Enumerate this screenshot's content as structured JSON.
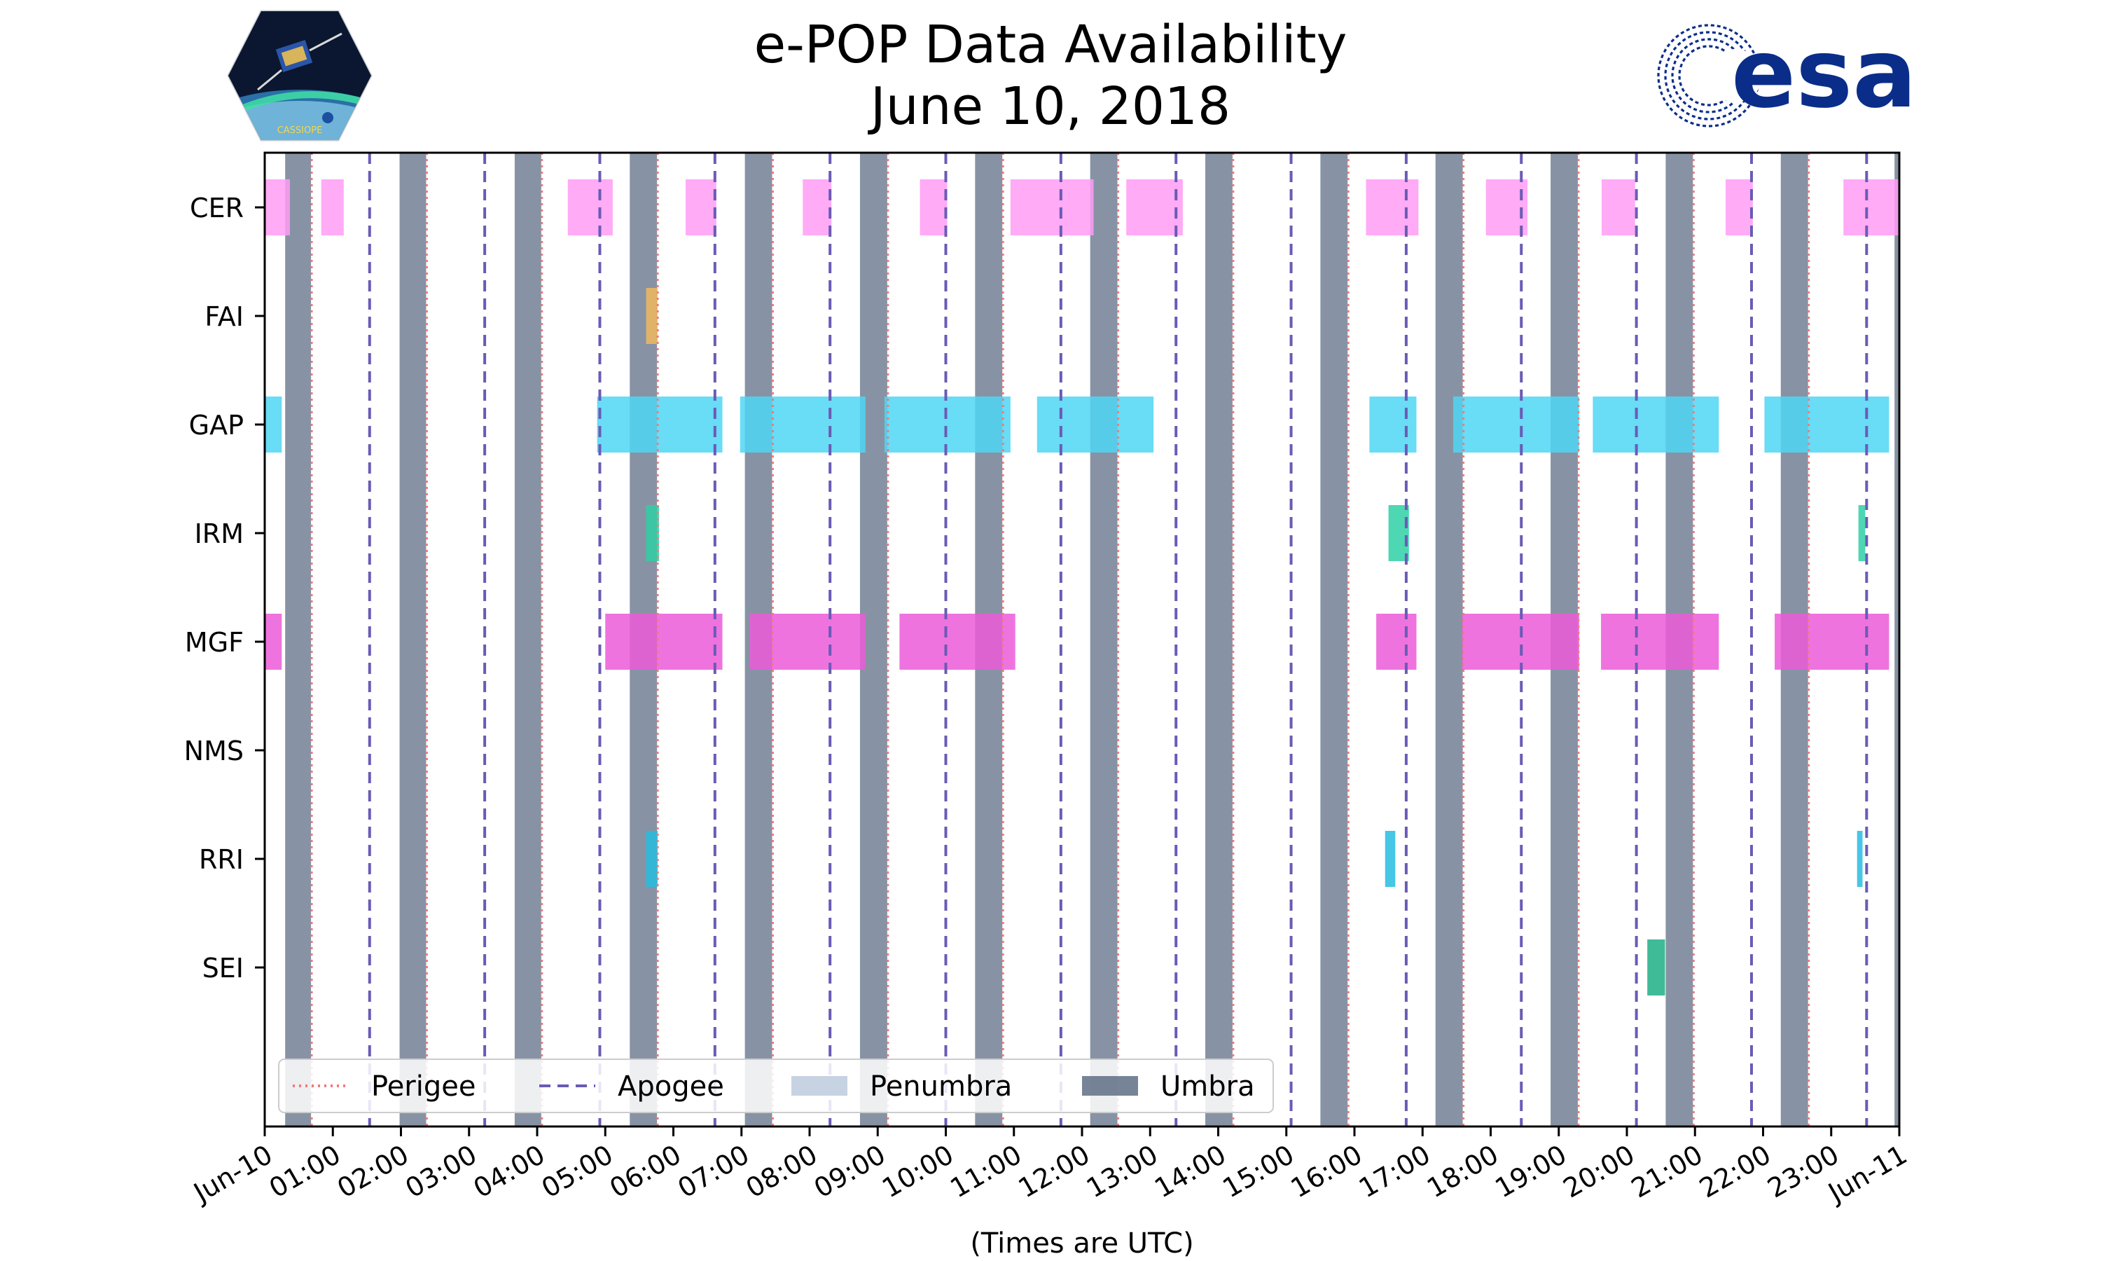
{
  "chart_data": {
    "type": "timeline",
    "title": "e-POP Data Availability",
    "subtitle": "June 10, 2018",
    "xlabel": "(Times are UTC)",
    "xlim_hours": [
      0,
      24
    ],
    "x_tick_labels": [
      "Jun-10",
      "01:00",
      "02:00",
      "03:00",
      "04:00",
      "05:00",
      "06:00",
      "07:00",
      "08:00",
      "09:00",
      "10:00",
      "11:00",
      "12:00",
      "13:00",
      "14:00",
      "15:00",
      "16:00",
      "17:00",
      "18:00",
      "19:00",
      "20:00",
      "21:00",
      "22:00",
      "23:00",
      "Jun-11"
    ],
    "instruments": [
      "CER",
      "FAI",
      "GAP",
      "IRM",
      "MGF",
      "NMS",
      "RRI",
      "SEI"
    ],
    "umbra_intervals": [
      [
        0.3,
        0.68
      ],
      [
        1.98,
        2.37
      ],
      [
        3.67,
        4.06
      ],
      [
        5.36,
        5.76
      ],
      [
        7.05,
        7.45
      ],
      [
        8.74,
        9.14
      ],
      [
        10.43,
        10.83
      ],
      [
        12.12,
        12.52
      ],
      [
        13.81,
        14.21
      ],
      [
        15.5,
        15.9
      ],
      [
        17.19,
        17.59
      ],
      [
        18.88,
        19.28
      ],
      [
        20.57,
        20.97
      ],
      [
        22.26,
        22.66
      ],
      [
        23.93,
        24
      ]
    ],
    "perigee_times": [
      0.69,
      2.38,
      4.07,
      5.77,
      7.46,
      9.15,
      10.84,
      12.53,
      14.22,
      15.91,
      17.6,
      19.29,
      20.98,
      22.67
    ],
    "apogee_times": [
      1.54,
      3.23,
      4.92,
      6.61,
      8.3,
      10.0,
      11.69,
      13.38,
      15.07,
      16.76,
      18.45,
      20.14,
      21.83,
      23.52
    ],
    "availability": {
      "CER": [
        [
          0.0,
          0.37
        ],
        [
          0.83,
          1.16
        ],
        [
          4.45,
          5.11
        ],
        [
          6.18,
          6.63
        ],
        [
          7.9,
          8.32
        ],
        [
          9.62,
          10.02
        ],
        [
          10.95,
          12.17
        ],
        [
          12.65,
          13.48
        ],
        [
          16.17,
          16.94
        ],
        [
          17.93,
          18.54
        ],
        [
          19.63,
          20.12
        ],
        [
          21.45,
          21.85
        ],
        [
          23.18,
          24.0
        ]
      ],
      "FAI": [
        [
          5.6,
          5.77
        ]
      ],
      "GAP": [
        [
          0.0,
          0.25
        ],
        [
          4.88,
          6.72
        ],
        [
          6.98,
          8.82
        ],
        [
          9.1,
          10.95
        ],
        [
          11.34,
          13.05
        ],
        [
          16.22,
          16.91
        ],
        [
          17.45,
          19.3
        ],
        [
          19.5,
          21.35
        ],
        [
          22.02,
          23.85
        ]
      ],
      "IRM": [
        [
          5.6,
          5.79
        ],
        [
          16.5,
          16.8
        ],
        [
          23.4,
          23.5
        ]
      ],
      "MGF": [
        [
          0.0,
          0.25
        ],
        [
          5.0,
          6.72
        ],
        [
          7.12,
          8.82
        ],
        [
          9.32,
          11.02
        ],
        [
          16.32,
          16.91
        ],
        [
          17.58,
          19.3
        ],
        [
          19.62,
          21.35
        ],
        [
          22.17,
          23.85
        ]
      ],
      "NMS": [],
      "RRI": [
        [
          5.6,
          5.77
        ],
        [
          16.45,
          16.6
        ],
        [
          23.38,
          23.46
        ]
      ],
      "SEI": [
        [
          20.3,
          20.56
        ]
      ]
    },
    "instrument_colors": {
      "CER": "#ff9cf5",
      "FAI": "#f0b95e",
      "GAP": "#4fd6f5",
      "IRM": "#2ed0a5",
      "MGF": "#ec5bd9",
      "NMS": "#999999",
      "RRI": "#24bde0",
      "SEI": "#1faf85"
    },
    "umbra_color": "#5f6f86",
    "penumbra_color": "#c7d3e3",
    "perigee_color": "#f07a7a",
    "apogee_color": "#6a5bb5",
    "legend": {
      "position": "lower-left",
      "entries": [
        "Perigee",
        "Apogee",
        "Penumbra",
        "Umbra"
      ]
    }
  },
  "logos": {
    "cassiope_text": "CASSIOPE",
    "esa_text": "esa",
    "esa_color": "#0b2d8a"
  }
}
